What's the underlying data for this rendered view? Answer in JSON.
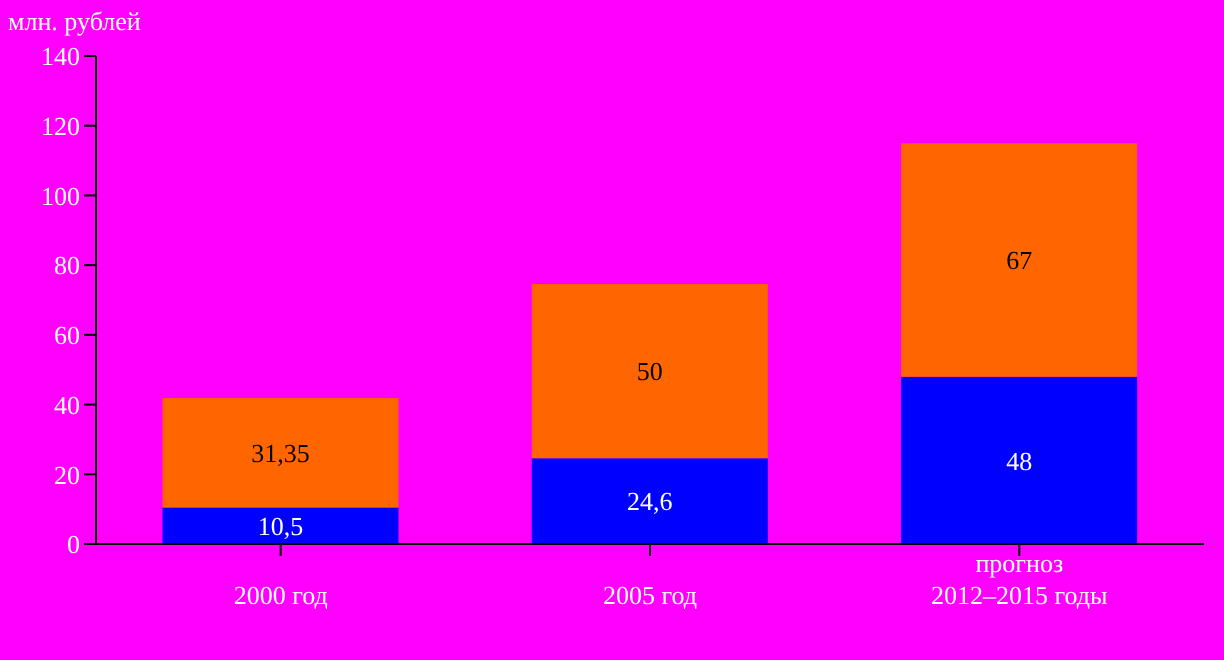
{
  "chart_data": {
    "type": "bar",
    "stacked": true,
    "ylabel": "млн. рублей",
    "categories": [
      "2000 год",
      "2005 год",
      "прогноз\n2012–2015 годы"
    ],
    "series": [
      {
        "color": "#0000ff",
        "values": [
          10.5,
          24.6,
          48
        ],
        "value_labels": [
          "10,5",
          "24,6",
          "48"
        ]
      },
      {
        "color": "#ff6600",
        "values": [
          31.35,
          50,
          67
        ],
        "value_labels": [
          "31,35",
          "50",
          "67"
        ]
      }
    ],
    "ylim": [
      0,
      140
    ],
    "yticks": [
      0,
      20,
      40,
      60,
      80,
      100,
      120,
      140
    ],
    "grid": false,
    "legend": false
  }
}
